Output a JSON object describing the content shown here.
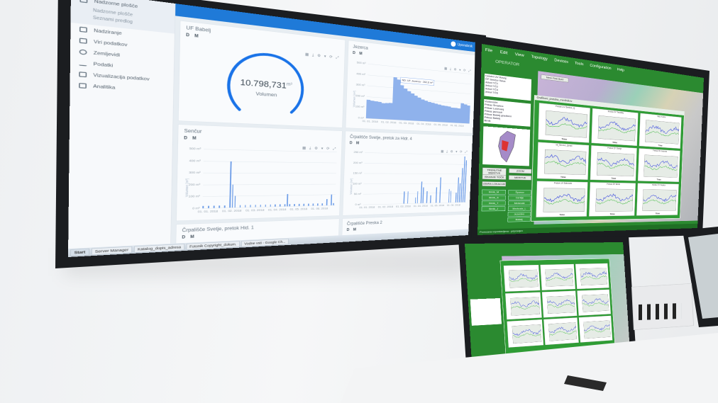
{
  "dashboard": {
    "sidebar": [
      {
        "label": "Nadzorne plošče",
        "sub": [
          "Nadzorne plošče",
          "Seznami predlog"
        ]
      },
      {
        "label": "Nadziranje"
      },
      {
        "label": "Viri podatkov"
      },
      {
        "label": "Zemljevidi"
      },
      {
        "label": "Podatki"
      },
      {
        "label": "Vizualizacija podatkov"
      },
      {
        "label": "Analitika"
      }
    ],
    "user": "Uporabnik",
    "toggle": "D  M",
    "tile_tools": "▦ ⤓ ⚙ ▾ ⟳ ⤢",
    "gauge_tile": {
      "title": "UF Babelj",
      "value": "10.798,731",
      "unit": "m³",
      "label": "Volumen",
      "fill": 0.75,
      "color": "#1a73e8"
    },
    "chart_tiles": [
      {
        "title": "Jezerca",
        "yticks": [
          "500 m³",
          "400 m³",
          "300 m³",
          "200 m³",
          "100 m³",
          "0 m³"
        ],
        "xticks": [
          "01. 01. 2018",
          "01. 02. 2018",
          "01. 03. 2018",
          "01. 04. 2018",
          "01. 05. 2018",
          "01. 06. 2018"
        ],
        "ytitle": "Volumen [m³]",
        "type": "area",
        "values": [
          170,
          165,
          160,
          158,
          150,
          152,
          155,
          400,
          380,
          330,
          300,
          280,
          260,
          240,
          225,
          210,
          200,
          190,
          185,
          178,
          170,
          165,
          160,
          158,
          150,
          148,
          145,
          200,
          190,
          180
        ],
        "tooltip": "ND: UF Jezerca · 262,6 m³"
      },
      {
        "title": "Senčur",
        "yticks": [
          "500 m³",
          "400 m³",
          "300 m³",
          "200 m³",
          "100 m³",
          "0 m³"
        ],
        "xticks": [
          "01. 01. 2018",
          "01. 02. 2018",
          "01. 03. 2018",
          "01. 04. 2018",
          "01. 05. 2018",
          "01. 06. 2018"
        ],
        "ytitle": "Volumen [m³]",
        "type": "bar",
        "values": [
          20,
          0,
          20,
          0,
          20,
          0,
          20,
          0,
          20,
          0,
          400,
          200,
          100,
          0,
          20,
          0,
          20,
          0,
          20,
          0,
          20,
          0,
          20,
          0,
          20,
          0,
          20,
          0,
          20,
          0,
          20,
          0,
          20,
          110,
          20,
          0,
          20,
          0,
          20,
          0,
          20,
          0,
          20,
          0,
          20,
          0,
          20,
          0,
          20,
          0,
          60,
          0,
          100,
          20
        ]
      },
      {
        "title": "Črpališče Svetje, pretok za Hidr. 4",
        "yticks": [
          "250 m³",
          "200 m³",
          "150 m³",
          "100 m³",
          "50 m³",
          "0 m³"
        ],
        "xticks": [
          "01. 01. 2018",
          "01. 02. 2018",
          "01. 03. 2018",
          "01. 04. 2018",
          "01. 05. 2018",
          "01. 06. 2018"
        ],
        "ytitle": "Volumen [m³]",
        "type": "bar",
        "values": [
          0,
          0,
          0,
          0,
          0,
          0,
          0,
          0,
          0,
          0,
          0,
          0,
          0,
          0,
          0,
          0,
          0,
          0,
          0,
          0,
          60,
          0,
          60,
          0,
          0,
          0,
          30,
          60,
          0,
          110,
          80,
          0,
          60,
          0,
          40,
          0,
          0,
          80,
          0,
          130,
          0,
          0,
          0,
          0,
          70,
          60,
          0,
          0,
          50,
          130,
          100,
          180,
          240,
          220
        ]
      },
      {
        "title": "Črpališče Svetje, pretok Hid. 1"
      },
      {
        "title": "Črpališče Preska 2"
      }
    ],
    "taskbar": [
      "Start",
      "Server Manager",
      "Katalog_dopis_adresa",
      "Fotonik Copyright_dokum.",
      "Vodne vsti - Google Ch..."
    ]
  },
  "scada": {
    "menu": [
      "File",
      "Edit",
      "View",
      "Topology",
      "Devices",
      "Tools",
      "Configuration",
      "Help"
    ],
    "role": "OPERATOR",
    "tab": "Mere Flow Bord",
    "list1": [
      "Celotni UV Rovaj",
      "ČP Senčur Sava",
      "Jelovl TČ1",
      "Jelovl TČ2",
      "Jelovl TČ4",
      "Jelovl TČ6"
    ],
    "list2": [
      "Vodovodni",
      "Prikaz Šmartno",
      "Prikaz Ločevanj",
      "Prikaz javnosti",
      "Prikaz Bašelj gradbeni",
      "Prikaz Bašelj",
      "Brnik"
    ],
    "buttons": [
      "TRENUTNE MERITVE",
      "ZOOM",
      "ISKANJE TOČK",
      "MERITVE",
      "IZBIRA LOKACIJE"
    ],
    "green_buttons": [
      "Brnik_M",
      "Brnik_S",
      "Brnik_T",
      "Brnik_J",
      "Španov",
      "Cerklje",
      "Medvode",
      "Medvode_L",
      "Jezersko",
      "Bašelj"
    ],
    "window_title": "Grafikoni_pretoka_merilnikov",
    "chart_titles": [
      "Pretok UV Šenčur_Q",
      "Pretok ČP Tenetiše",
      "Nivo Kokra",
      "NI_Šenčur_Qmax",
      "Pretok ČP Svetje",
      "Pretok NV Jezerca",
      "Pretok UV Bobovek",
      "Pretok ČP Brnik",
      "Pretok ČP Preska"
    ],
    "time_label": "Time",
    "status": "Povezava vzpostavljena - pripravljen"
  }
}
